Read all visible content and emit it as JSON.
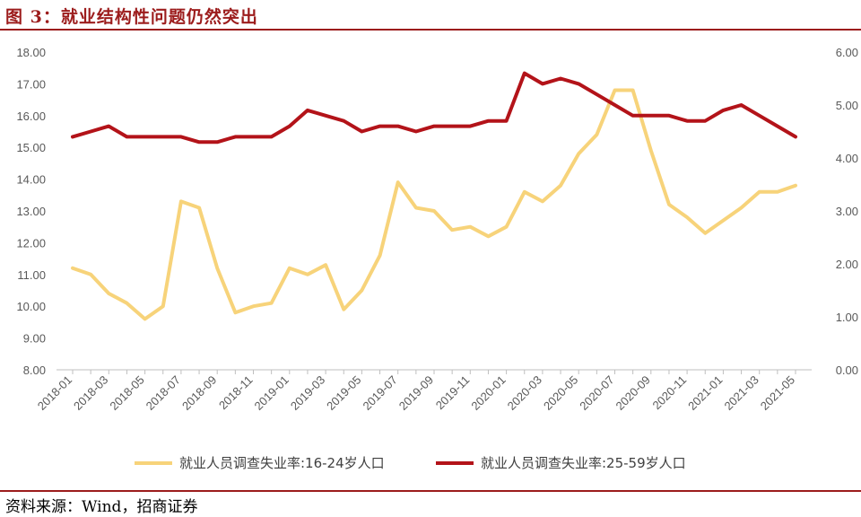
{
  "figure": {
    "title": "图 3：就业结构性问题仍然突出",
    "source": "资料来源：Wind，招商证券"
  },
  "chart_data": {
    "type": "line",
    "categories": [
      "2018-01",
      "2018-02",
      "2018-03",
      "2018-04",
      "2018-05",
      "2018-06",
      "2018-07",
      "2018-08",
      "2018-09",
      "2018-10",
      "2018-11",
      "2018-12",
      "2019-01",
      "2019-02",
      "2019-03",
      "2019-04",
      "2019-05",
      "2019-06",
      "2019-07",
      "2019-08",
      "2019-09",
      "2019-10",
      "2019-11",
      "2019-12",
      "2020-01",
      "2020-02",
      "2020-03",
      "2020-04",
      "2020-05",
      "2020-06",
      "2020-07",
      "2020-08",
      "2020-09",
      "2020-10",
      "2020-11",
      "2020-12",
      "2021-01",
      "2021-02",
      "2021-03",
      "2021-04",
      "2021-05"
    ],
    "tick_labels": [
      "2018-01",
      "2018-03",
      "2018-05",
      "2018-07",
      "2018-09",
      "2018-11",
      "2019-01",
      "2019-03",
      "2019-05",
      "2019-07",
      "2019-09",
      "2019-11",
      "2020-01",
      "2020-03",
      "2020-05",
      "2020-07",
      "2020-09",
      "2020-11",
      "2021-01",
      "2021-03",
      "2021-05"
    ],
    "left_axis": {
      "ylim": [
        8,
        18
      ],
      "ticks": [
        "8.00",
        "9.00",
        "10.00",
        "11.00",
        "12.00",
        "13.00",
        "14.00",
        "15.00",
        "16.00",
        "17.00",
        "18.00"
      ]
    },
    "right_axis": {
      "ylim": [
        0,
        6
      ],
      "ticks": [
        "0.00",
        "1.00",
        "2.00",
        "3.00",
        "4.00",
        "5.00",
        "6.00"
      ]
    },
    "grid": false,
    "legend_position": "bottom",
    "series": [
      {
        "name": "就业人员调查失业率:16-24岁人口",
        "axis": "left",
        "color": "#f7d37a",
        "values": [
          11.2,
          11.0,
          10.4,
          10.1,
          9.6,
          10.0,
          13.3,
          13.1,
          11.2,
          9.8,
          10.0,
          10.1,
          11.2,
          11.0,
          11.3,
          9.9,
          10.5,
          11.6,
          13.9,
          13.1,
          13.0,
          12.4,
          12.5,
          12.2,
          12.5,
          13.6,
          13.3,
          13.8,
          14.8,
          15.4,
          16.8,
          16.8,
          14.9,
          13.2,
          12.8,
          12.3,
          12.7,
          13.1,
          13.6,
          13.6,
          13.8
        ]
      },
      {
        "name": "就业人员调查失业率:25-59岁人口",
        "axis": "right",
        "color": "#b31319",
        "values": [
          4.4,
          4.5,
          4.6,
          4.4,
          4.4,
          4.4,
          4.4,
          4.3,
          4.3,
          4.4,
          4.4,
          4.4,
          4.6,
          4.9,
          4.8,
          4.7,
          4.5,
          4.6,
          4.6,
          4.5,
          4.6,
          4.6,
          4.6,
          4.7,
          4.7,
          5.6,
          5.4,
          5.5,
          5.4,
          5.2,
          5.0,
          4.8,
          4.8,
          4.8,
          4.7,
          4.7,
          4.9,
          5.0,
          4.8,
          4.6,
          4.4
        ]
      }
    ]
  }
}
